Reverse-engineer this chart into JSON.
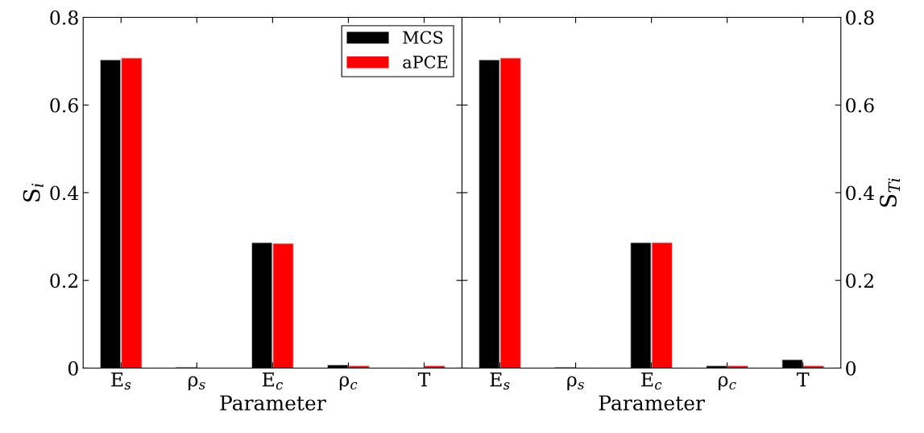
{
  "chart_data": [
    {
      "type": "bar",
      "categories": [
        "E$_{s}$",
        "ρ$_{s}$",
        "E$_{c}$",
        "ρ$_{c}$",
        "T"
      ],
      "xlabel": "Parameter",
      "ylabel": "S$_{i}$",
      "series": [
        {
          "name": "MCS",
          "color": "#000000",
          "values": [
            0.703,
            0.002,
            0.286,
            0.007,
            null
          ]
        },
        {
          "name": "aPCE",
          "color": "#ff0000",
          "values": [
            0.707,
            null,
            0.284,
            0.005,
            0.005
          ]
        }
      ],
      "ylim": [
        0,
        0.8
      ],
      "yticks": [
        0,
        0.2,
        0.4,
        0.6,
        0.8
      ],
      "legend": "top right"
    },
    {
      "type": "bar",
      "categories": [
        "E$_{s}$",
        "ρ$_{s}$",
        "E$_{c}$",
        "ρ$_{c}$",
        "T"
      ],
      "xlabel": "Parameter",
      "ylabel": "S$_{Ti}$",
      "series": [
        {
          "color": "#000000",
          "values": [
            0.703,
            0.002,
            0.286,
            0.005,
            0.019
          ]
        },
        {
          "color": "#ff0000",
          "values": [
            0.707,
            null,
            0.286,
            0.005,
            0.005
          ]
        }
      ],
      "ylim": [
        0,
        0.8
      ],
      "yticks": [
        0,
        0.2,
        0.4,
        0.6,
        0.8
      ]
    }
  ]
}
